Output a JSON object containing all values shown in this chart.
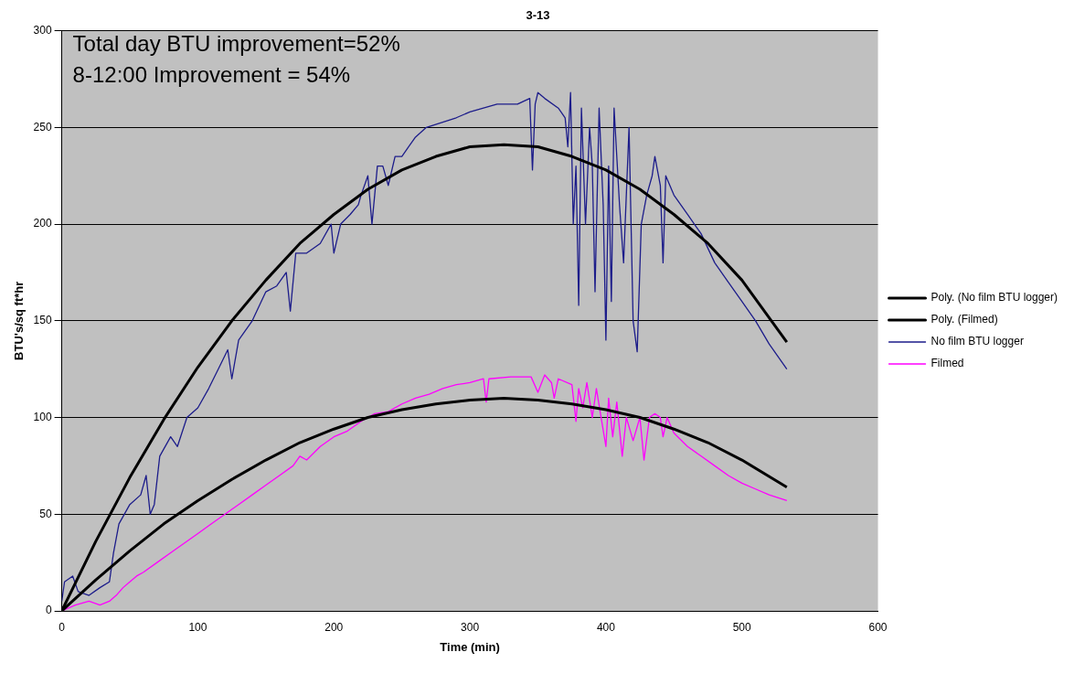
{
  "chart_data": {
    "type": "line",
    "title": "3-13",
    "xlabel": "Time (min)",
    "ylabel": "BTU's/sq ft*hr",
    "annotations": [
      "Total day BTU improvement=52%",
      "8-12:00 Improvement = 54%"
    ],
    "xlim": [
      0,
      600
    ],
    "xticks": [
      0,
      100,
      200,
      300,
      400,
      500,
      600
    ],
    "ylim": [
      0,
      300
    ],
    "yticks": [
      0,
      50,
      100,
      150,
      200,
      250,
      300
    ],
    "grid": "y",
    "legend": "right",
    "marker": "none",
    "line_style": "solid",
    "series": [
      {
        "name": "No film BTU logger",
        "color": "#1c1c8a",
        "x": [
          0,
          2,
          8,
          12,
          20,
          28,
          35,
          38,
          42,
          50,
          58,
          62,
          65,
          68,
          72,
          80,
          85,
          92,
          100,
          108,
          115,
          122,
          125,
          130,
          140,
          150,
          158,
          165,
          168,
          172,
          180,
          190,
          198,
          200,
          205,
          212,
          218,
          220,
          225,
          228,
          232,
          236,
          240,
          245,
          250,
          255,
          260,
          268,
          290,
          300,
          310,
          320,
          335,
          344,
          346,
          348,
          350,
          355,
          365,
          370,
          372,
          374,
          376,
          378,
          380,
          382,
          385,
          388,
          390,
          392,
          395,
          398,
          400,
          402,
          404,
          406,
          410,
          413,
          417,
          420,
          423,
          426,
          430,
          434,
          436,
          440,
          442,
          444,
          450,
          460,
          470,
          480,
          490,
          500,
          510,
          520,
          533
        ],
        "values": [
          5,
          15,
          18,
          10,
          8,
          12,
          15,
          30,
          45,
          55,
          60,
          70,
          50,
          55,
          80,
          90,
          85,
          100,
          105,
          115,
          125,
          135,
          120,
          140,
          150,
          165,
          168,
          175,
          155,
          185,
          185,
          190,
          200,
          185,
          200,
          205,
          210,
          215,
          225,
          200,
          230,
          230,
          220,
          235,
          235,
          240,
          245,
          250,
          255,
          258,
          260,
          262,
          262,
          265,
          228,
          262,
          268,
          265,
          260,
          255,
          240,
          268,
          200,
          230,
          158,
          260,
          200,
          250,
          230,
          165,
          260,
          210,
          140,
          230,
          160,
          260,
          210,
          180,
          250,
          150,
          134,
          200,
          215,
          225,
          235,
          220,
          180,
          225,
          215,
          205,
          195,
          180,
          170,
          160,
          150,
          138,
          125
        ]
      },
      {
        "name": "Filmed",
        "color": "#ff00ff",
        "x": [
          0,
          10,
          20,
          28,
          35,
          40,
          45,
          50,
          55,
          60,
          70,
          80,
          90,
          100,
          110,
          120,
          130,
          140,
          150,
          160,
          170,
          175,
          180,
          190,
          200,
          210,
          220,
          230,
          240,
          250,
          260,
          270,
          280,
          290,
          300,
          310,
          312,
          314,
          330,
          345,
          350,
          355,
          360,
          362,
          365,
          375,
          378,
          380,
          383,
          386,
          390,
          393,
          396,
          400,
          402,
          405,
          408,
          412,
          415,
          420,
          425,
          428,
          432,
          436,
          440,
          442,
          445,
          450,
          460,
          470,
          480,
          490,
          500,
          510,
          520,
          533
        ],
        "values": [
          0,
          3,
          5,
          3,
          5,
          8,
          12,
          15,
          18,
          20,
          25,
          30,
          35,
          40,
          45,
          50,
          55,
          60,
          65,
          70,
          75,
          80,
          78,
          85,
          90,
          93,
          98,
          102,
          103,
          107,
          110,
          112,
          115,
          117,
          118,
          120,
          108,
          120,
          121,
          121,
          113,
          122,
          118,
          110,
          120,
          117,
          98,
          115,
          105,
          118,
          100,
          115,
          102,
          85,
          110,
          90,
          108,
          80,
          100,
          88,
          100,
          78,
          100,
          102,
          100,
          90,
          100,
          92,
          85,
          80,
          75,
          70,
          66,
          63,
          60,
          57
        ]
      },
      {
        "name": "Poly. (No film BTU logger)",
        "color": "#000000",
        "x": [
          0,
          25,
          50,
          75,
          100,
          125,
          150,
          175,
          200,
          225,
          250,
          275,
          300,
          325,
          350,
          375,
          400,
          425,
          450,
          475,
          500,
          533
        ],
        "values": [
          0,
          36,
          69,
          99,
          126,
          150,
          171,
          190,
          205,
          218,
          228,
          235,
          240,
          241,
          240,
          235,
          228,
          218,
          205,
          190,
          171,
          139
        ]
      },
      {
        "name": "Poly. (Filmed)",
        "color": "#000000",
        "x": [
          0,
          25,
          50,
          75,
          100,
          125,
          150,
          175,
          200,
          225,
          250,
          275,
          300,
          325,
          350,
          375,
          400,
          425,
          450,
          475,
          500,
          533
        ],
        "values": [
          0,
          16,
          31,
          45,
          57,
          68,
          78,
          87,
          94,
          100,
          104,
          107,
          109,
          110,
          109,
          107,
          104,
          100,
          94,
          87,
          78,
          64
        ]
      }
    ]
  }
}
